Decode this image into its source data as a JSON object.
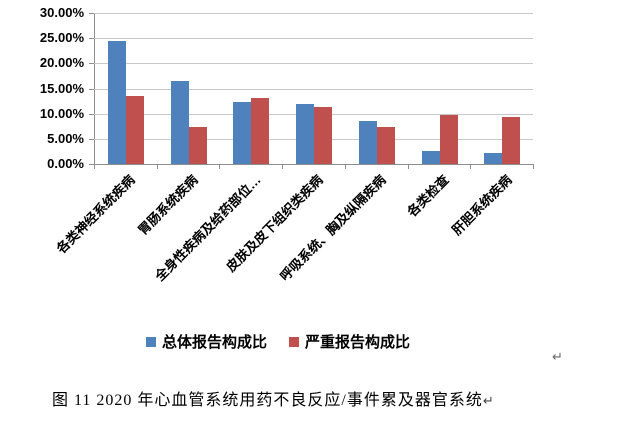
{
  "chart_data": {
    "type": "bar",
    "title": "",
    "xlabel": "",
    "ylabel": "",
    "categories": [
      "各类神经系统疾病",
      "胃肠系统疾病",
      "全身性疾病及给药部位…",
      "皮肤及皮下组织类疾病",
      "呼吸系统、胸及纵隔疾病",
      "各类检查",
      "肝胆系统疾病"
    ],
    "series": [
      {
        "name": "总体报告构成比",
        "color": "#4F81BD",
        "values": [
          24.5,
          16.4,
          12.4,
          12.0,
          8.5,
          2.6,
          2.1
        ]
      },
      {
        "name": "严重报告构成比",
        "color": "#C0504D",
        "values": [
          13.6,
          7.3,
          13.2,
          11.3,
          7.4,
          9.7,
          9.3
        ]
      }
    ],
    "ylim": [
      0,
      30
    ],
    "ytick_labels": [
      "30.00%",
      "25.00%",
      "20.00%",
      "15.00%",
      "10.00%",
      "5.00%",
      "0.00%"
    ],
    "grid": true,
    "legend_position": "bottom-center",
    "axis_color": "#8E8E8E",
    "gridline_color": "#C9C9C9"
  },
  "legend": {
    "series1_label": "总体报告构成比",
    "series2_label": "严重报告构成比"
  },
  "caption": {
    "text": "图 11  2020 年心血管系统用药不良反应/事件累及器官系统"
  },
  "marks": {
    "paragraph_return": "↵"
  }
}
